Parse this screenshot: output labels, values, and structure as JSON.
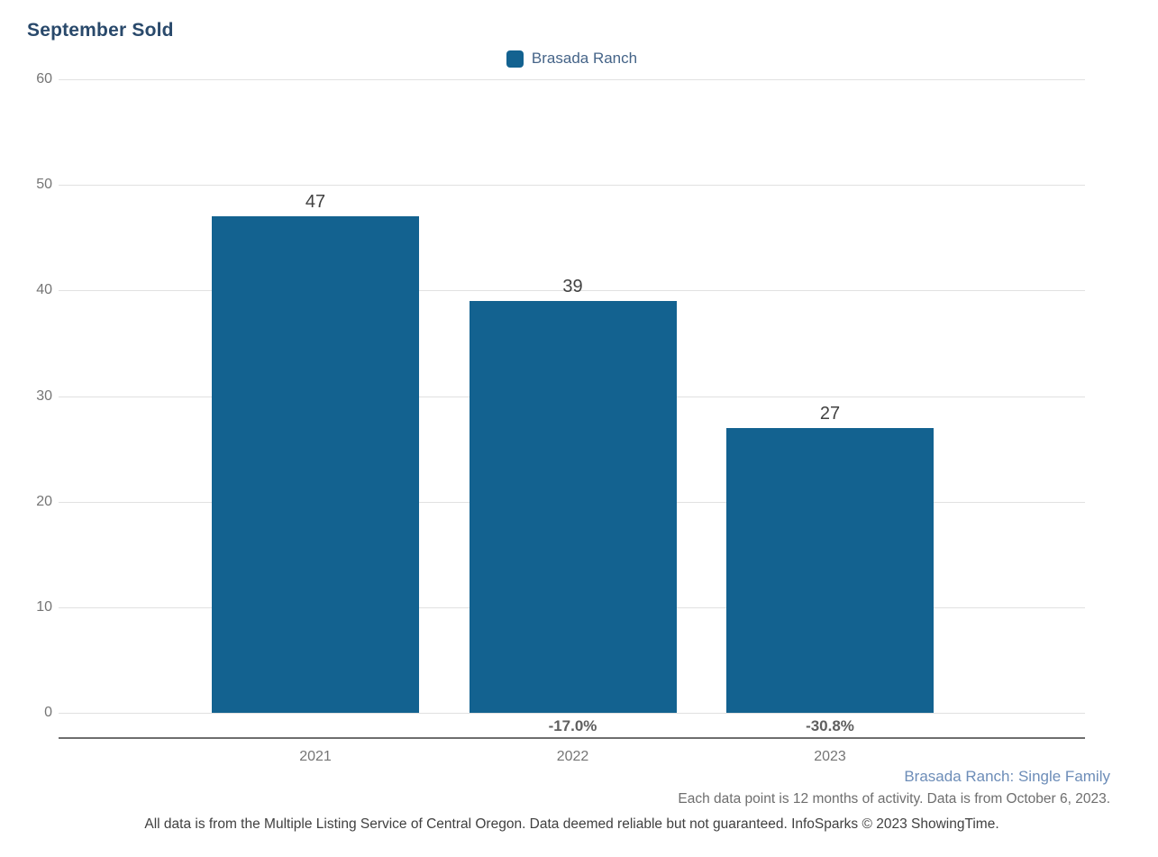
{
  "title": "September Sold",
  "legend": {
    "label": "Brasada Ranch"
  },
  "chart_data": {
    "type": "bar",
    "title": "September Sold",
    "categories": [
      "2021",
      "2022",
      "2023"
    ],
    "series": [
      {
        "name": "Brasada Ranch",
        "values": [
          47,
          39,
          27
        ]
      }
    ],
    "bar_value_labels": [
      "47",
      "39",
      "27"
    ],
    "pct_change_labels": [
      "",
      "-17.0%",
      "-30.8%"
    ],
    "y_ticks": [
      0,
      10,
      20,
      30,
      40,
      50,
      60
    ],
    "ylim": [
      0,
      60
    ],
    "xlabel": "",
    "ylabel": "",
    "grid": "horizontal",
    "legend_position": "top-center",
    "bar_color": "#136290"
  },
  "footer": {
    "series_note": "Brasada Ranch: Single Family",
    "data_note": "Each data point is 12 months of activity. Data is from October 6, 2023.",
    "disclaimer": "All data is from the Multiple Listing Service of Central Oregon. Data deemed reliable but not guaranteed. InfoSparks © 2023 ShowingTime."
  },
  "colors": {
    "bar": "#136290",
    "title_text": "#29496B",
    "legend_text": "#456488",
    "series_note_text": "#6D8DB8"
  }
}
